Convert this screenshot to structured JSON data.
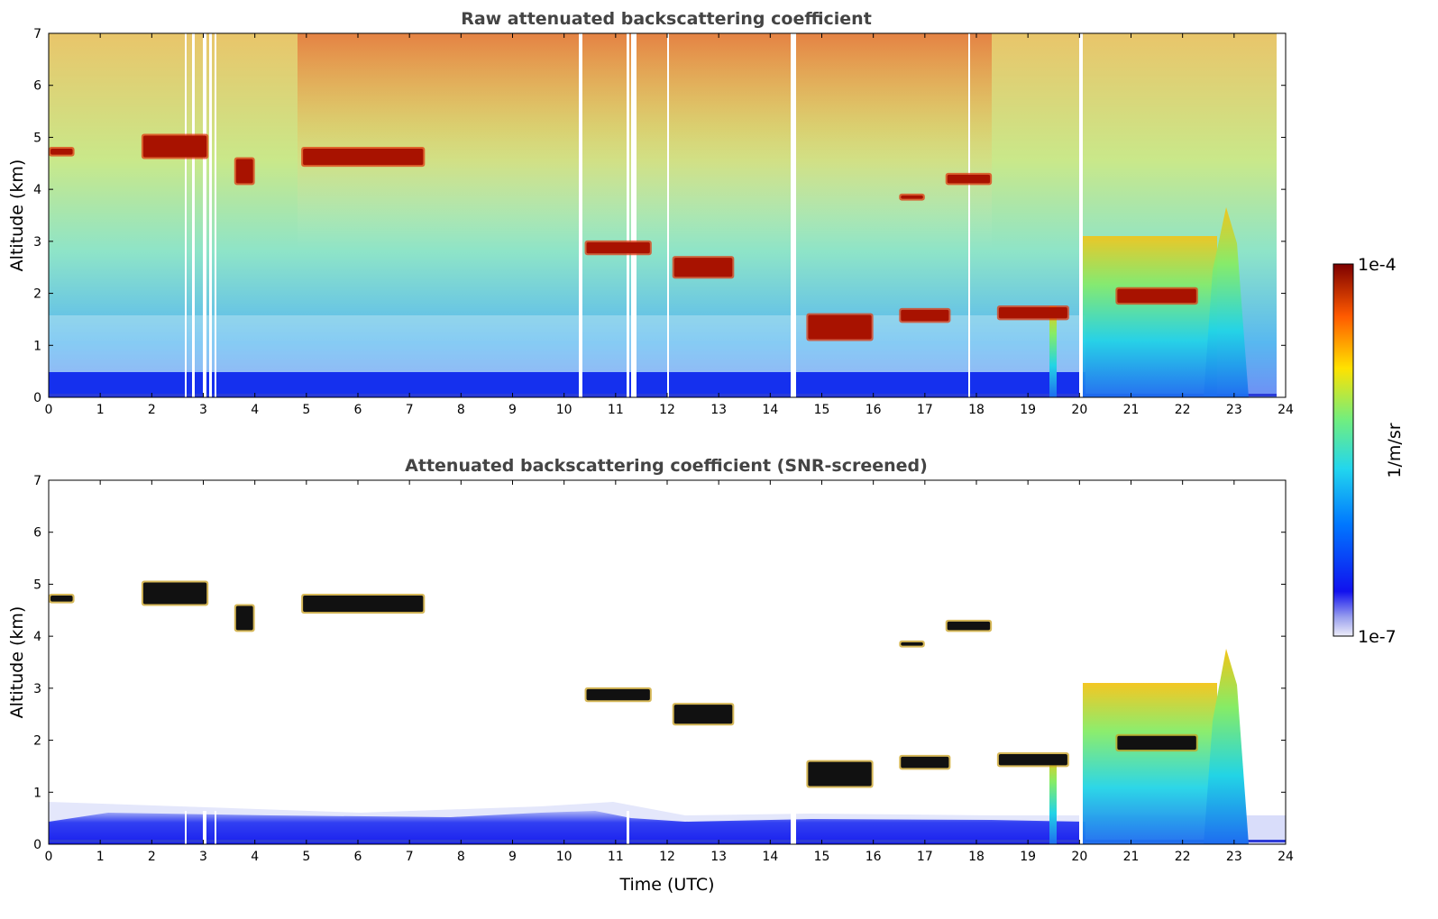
{
  "chart_data": [
    {
      "type": "heatmap",
      "title": "Raw attenuated backscattering coefficient",
      "xlabel": "",
      "ylabel": "Altitude (km)",
      "xlim": [
        0,
        24
      ],
      "ylim": [
        0,
        7
      ],
      "xticks": [
        "0",
        "1",
        "2",
        "3",
        "4",
        "5",
        "6",
        "7",
        "8",
        "9",
        "10",
        "11",
        "12",
        "13",
        "14",
        "15",
        "16",
        "17",
        "18",
        "19",
        "20",
        "21",
        "22",
        "23",
        "24"
      ],
      "yticks": [
        "0",
        "1",
        "2",
        "3",
        "4",
        "5",
        "6",
        "7"
      ],
      "layers": [
        {
          "t0": 0.0,
          "t1": 0.5,
          "z0": 4.65,
          "z1": 4.8
        },
        {
          "t0": 1.8,
          "t1": 3.1,
          "z0": 4.6,
          "z1": 5.05
        },
        {
          "t0": 3.6,
          "t1": 4.0,
          "z0": 4.1,
          "z1": 4.6
        },
        {
          "t0": 4.9,
          "t1": 7.3,
          "z0": 4.45,
          "z1": 4.8
        },
        {
          "t0": 10.4,
          "t1": 11.7,
          "z0": 2.75,
          "z1": 3.0
        },
        {
          "t0": 12.1,
          "t1": 13.3,
          "z0": 2.3,
          "z1": 2.7
        },
        {
          "t0": 14.7,
          "t1": 16.0,
          "z0": 1.1,
          "z1": 1.6
        },
        {
          "t0": 16.5,
          "t1": 17.0,
          "z0": 3.8,
          "z1": 3.9
        },
        {
          "t0": 17.4,
          "t1": 18.3,
          "z0": 4.1,
          "z1": 4.3
        },
        {
          "t0": 16.5,
          "t1": 17.5,
          "z0": 1.45,
          "z1": 1.7
        },
        {
          "t0": 18.4,
          "t1": 19.8,
          "z0": 1.5,
          "z1": 1.75
        },
        {
          "t0": 20.7,
          "t1": 22.3,
          "z0": 1.8,
          "z1": 2.1
        }
      ]
    },
    {
      "type": "heatmap",
      "title": "Attenuated backscattering coefficient (SNR-screened)",
      "xlabel": "Time (UTC)",
      "ylabel": "Altitude (km)",
      "xlim": [
        0,
        24
      ],
      "ylim": [
        0,
        7
      ],
      "xticks": [
        "0",
        "1",
        "2",
        "3",
        "4",
        "5",
        "6",
        "7",
        "8",
        "9",
        "10",
        "11",
        "12",
        "13",
        "14",
        "15",
        "16",
        "17",
        "18",
        "19",
        "20",
        "21",
        "22",
        "23",
        "24"
      ],
      "yticks": [
        "0",
        "1",
        "2",
        "3",
        "4",
        "5",
        "6",
        "7"
      ]
    }
  ],
  "colorbar": {
    "label": "1/m/sr",
    "max_label": "1e-4",
    "min_label": "1e-7"
  },
  "colors": {
    "low": "#0000ff",
    "mid": "#40e0d0",
    "high": "#ffd000",
    "max": "#8b0000"
  }
}
